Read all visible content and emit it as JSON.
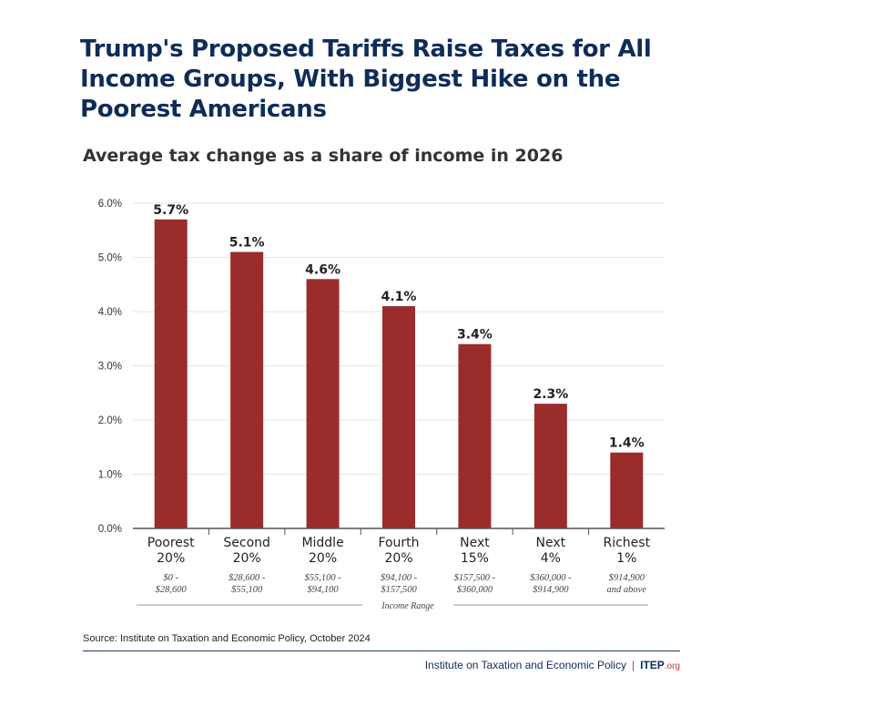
{
  "title": "Trump's Proposed Tariffs Raise Taxes for All Income Groups, With Biggest Hike on the Poorest Americans",
  "subtitle": "Average tax change as a share of income in 2026",
  "source": "Source: Institute on Taxation and Economic Policy, October 2024",
  "footer": {
    "org": "Institute on Taxation and Economic Policy",
    "separator": "|",
    "logo": "ITEP",
    "logo_suffix": ".org"
  },
  "colors": {
    "bar": "#9b2c2c",
    "title": "#0f2c59",
    "grid": "#e6e6e6",
    "axis": "#555555"
  },
  "chart_data": {
    "type": "bar",
    "title": "Average tax change as a share of income in 2026",
    "ylabel": "",
    "xlabel": "Income Range",
    "ylim": [
      0,
      6
    ],
    "yticks": [
      "0.0%",
      "1.0%",
      "2.0%",
      "3.0%",
      "4.0%",
      "5.0%",
      "6.0%"
    ],
    "ytick_values": [
      0,
      1,
      2,
      3,
      4,
      5,
      6
    ],
    "grid": true,
    "categories": [
      {
        "name": [
          "Poorest",
          "20%"
        ],
        "range": [
          "$0 -",
          "$28,600"
        ]
      },
      {
        "name": [
          "Second",
          "20%"
        ],
        "range": [
          "$28,600 -",
          "$55,100"
        ]
      },
      {
        "name": [
          "Middle",
          "20%"
        ],
        "range": [
          "$55,100 -",
          "$94,100"
        ]
      },
      {
        "name": [
          "Fourth",
          "20%"
        ],
        "range": [
          "$94,100 -",
          "$157,500"
        ]
      },
      {
        "name": [
          "Next",
          "15%"
        ],
        "range": [
          "$157,500 -",
          "$360,000"
        ]
      },
      {
        "name": [
          "Next",
          "4%"
        ],
        "range": [
          "$360,000 -",
          "$914,900"
        ]
      },
      {
        "name": [
          "Richest",
          "1%"
        ],
        "range": [
          "$914,900",
          "and above"
        ]
      }
    ],
    "values": [
      5.7,
      5.1,
      4.6,
      4.1,
      3.4,
      2.3,
      1.4
    ],
    "value_labels": [
      "5.7%",
      "5.1%",
      "4.6%",
      "4.1%",
      "3.4%",
      "2.3%",
      "1.4%"
    ]
  }
}
